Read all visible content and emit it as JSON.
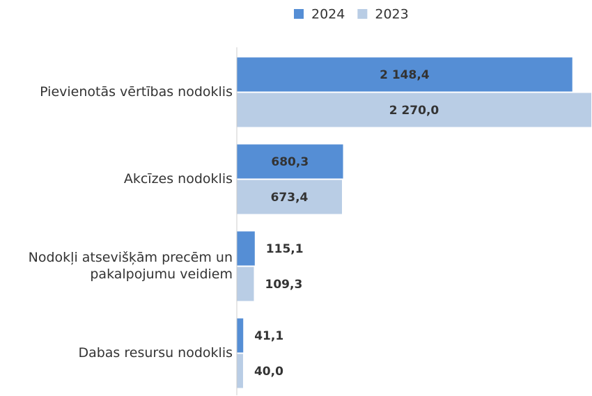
{
  "chart_data": {
    "type": "hbar",
    "categories": [
      "Pievienotās vērtības nodoklis",
      "Akcīzes nodoklis",
      "Nodokļi atsevišķām precēm un pakalpojumu veidiem",
      "Dabas resursu nodoklis"
    ],
    "series": [
      {
        "name": "2024",
        "color": "#558ed5",
        "values": [
          2148.4,
          680.3,
          115.1,
          41.1
        ],
        "value_labels": [
          "2 148,4",
          "680,3",
          "115,1",
          "41,1"
        ]
      },
      {
        "name": "2023",
        "color": "#b9cde5",
        "values": [
          2270.0,
          673.4,
          109.3,
          40.0
        ],
        "value_labels": [
          "2 270,0",
          "673,4",
          "109,3",
          "40,0"
        ]
      }
    ],
    "xlim": [
      0,
      2270
    ],
    "legend": "top"
  }
}
